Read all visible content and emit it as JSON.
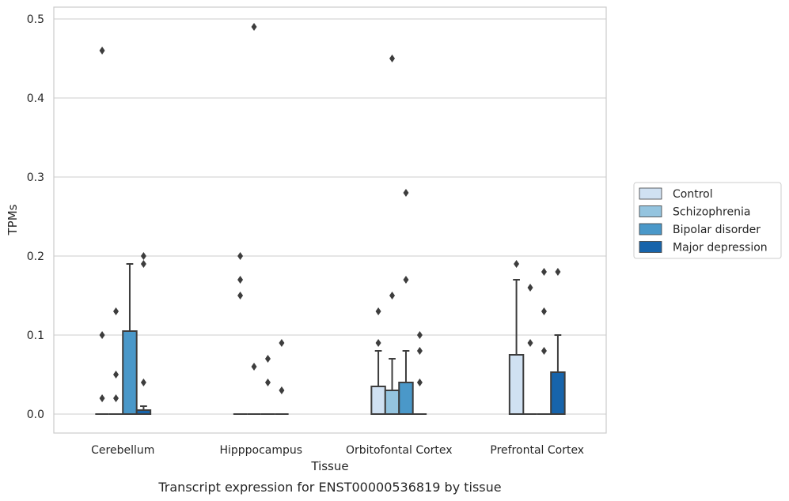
{
  "chart_data": {
    "type": "box",
    "xlabel": "Tissue",
    "ylabel": "TPMs",
    "caption": "Transcript expression for ENST00000536819 by tissue",
    "ylim": [
      -0.024,
      0.515
    ],
    "yticks": [
      "0.0",
      "0.1",
      "0.2",
      "0.3",
      "0.4",
      "0.5"
    ],
    "ytick_values": [
      0.0,
      0.1,
      0.2,
      0.3,
      0.4,
      0.5
    ],
    "grid": true,
    "legend_position": "right",
    "categories": [
      "Cerebellum",
      "Hipppocampus",
      "Orbitofontal Cortex",
      "Prefrontal Cortex"
    ],
    "series": [
      {
        "name": "Control",
        "color": "#d0e1f2",
        "boxes": [
          {
            "q1": 0,
            "median": 0,
            "q3": 0,
            "whisker_low": 0,
            "whisker_high": 0,
            "outliers": [
              0.46,
              0.1,
              0.02
            ]
          },
          {
            "q1": 0,
            "median": 0,
            "q3": 0,
            "whisker_low": 0,
            "whisker_high": 0,
            "outliers": [
              0.2,
              0.17,
              0.15
            ]
          },
          {
            "q1": 0,
            "median": 0,
            "q3": 0.035,
            "whisker_low": 0,
            "whisker_high": 0.08,
            "outliers": [
              0.13,
              0.09
            ]
          },
          {
            "q1": 0,
            "median": 0,
            "q3": 0.075,
            "whisker_low": 0,
            "whisker_high": 0.17,
            "outliers": [
              0.19
            ]
          }
        ]
      },
      {
        "name": "Schizophrenia",
        "color": "#94c4df",
        "boxes": [
          {
            "q1": 0,
            "median": 0,
            "q3": 0,
            "whisker_low": 0,
            "whisker_high": 0,
            "outliers": [
              0.13,
              0.05,
              0.02
            ]
          },
          {
            "q1": 0,
            "median": 0,
            "q3": 0,
            "whisker_low": 0,
            "whisker_high": 0,
            "outliers": [
              0.49,
              0.06
            ]
          },
          {
            "q1": 0,
            "median": 0,
            "q3": 0.03,
            "whisker_low": 0,
            "whisker_high": 0.07,
            "outliers": [
              0.45,
              0.15
            ]
          },
          {
            "q1": 0,
            "median": 0,
            "q3": 0,
            "whisker_low": 0,
            "whisker_high": 0,
            "outliers": [
              0.16,
              0.09
            ]
          }
        ]
      },
      {
        "name": "Bipolar disorder",
        "color": "#4a98c9",
        "boxes": [
          {
            "q1": 0,
            "median": 0,
            "q3": 0.105,
            "whisker_low": 0,
            "whisker_high": 0.19,
            "outliers": []
          },
          {
            "q1": 0,
            "median": 0,
            "q3": 0,
            "whisker_low": 0,
            "whisker_high": 0,
            "outliers": [
              0.07,
              0.04
            ]
          },
          {
            "q1": 0,
            "median": 0,
            "q3": 0.04,
            "whisker_low": 0,
            "whisker_high": 0.08,
            "outliers": [
              0.28,
              0.17
            ]
          },
          {
            "q1": 0,
            "median": 0,
            "q3": 0,
            "whisker_low": 0,
            "whisker_high": 0,
            "outliers": [
              0.18,
              0.13,
              0.08
            ]
          }
        ]
      },
      {
        "name": "Major depression",
        "color": "#1764ab",
        "boxes": [
          {
            "q1": 0,
            "median": 0,
            "q3": 0.005,
            "whisker_low": 0,
            "whisker_high": 0.01,
            "outliers": [
              0.2,
              0.19,
              0.04
            ]
          },
          {
            "q1": 0,
            "median": 0,
            "q3": 0,
            "whisker_low": 0,
            "whisker_high": 0,
            "outliers": [
              0.09,
              0.03
            ]
          },
          {
            "q1": 0,
            "median": 0,
            "q3": 0,
            "whisker_low": 0,
            "whisker_high": 0,
            "outliers": [
              0.1,
              0.08,
              0.04
            ]
          },
          {
            "q1": 0,
            "median": 0,
            "q3": 0.053,
            "whisker_low": 0,
            "whisker_high": 0.1,
            "outliers": [
              0.18
            ]
          }
        ]
      }
    ]
  }
}
